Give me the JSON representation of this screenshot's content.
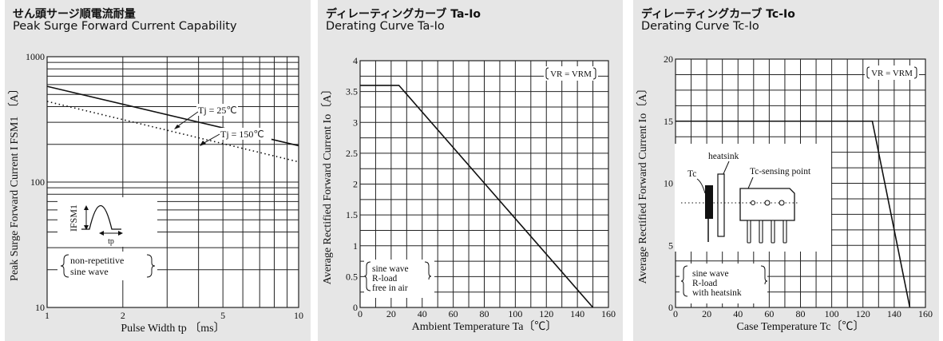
{
  "colors": {
    "background": "#e6e6e6",
    "grid": "#222222",
    "curve": "#111111",
    "box": "#ffffff"
  },
  "panels": [
    {
      "title_jp": "せん頭サージ順電流耐量",
      "title_en": "Peak Surge Forward Current Capability"
    },
    {
      "title_jp": "ディレーティングカーブ Ta-Io",
      "title_en": "Derating Curve Ta-Io"
    },
    {
      "title_jp": "ディレーティングカーブ Tc-Io",
      "title_en": "Derating  Curve  Tc-Io"
    }
  ],
  "chart_data": [
    {
      "type": "line",
      "xscale": "log",
      "yscale": "log",
      "xlim": [
        1,
        10
      ],
      "ylim": [
        10,
        1000
      ],
      "xlabel": "Pulse Width tp 〔ms〕",
      "ylabel": "Peak Surge Forward Current I FSM1 〔A〕",
      "x_ticks": [
        {
          "v": 1,
          "label": "1"
        },
        {
          "v": 2,
          "label": "2"
        },
        {
          "v": 5,
          "label": "5"
        },
        {
          "v": 10,
          "label": "10"
        }
      ],
      "y_ticks": [
        {
          "v": 10,
          "label": "10"
        },
        {
          "v": 100,
          "label": "100"
        },
        {
          "v": 1000,
          "label": "1000"
        }
      ],
      "grid": true,
      "series": [
        {
          "name": "Tj = 25℃",
          "style": "solid",
          "x": [
            1,
            10
          ],
          "y": [
            580,
            195
          ]
        },
        {
          "name": "Tj = 150℃",
          "style": "dotted",
          "x": [
            1,
            10
          ],
          "y": [
            440,
            145
          ]
        }
      ],
      "annotations": {
        "ifsm_label": "IFSM1",
        "tp_label": "tp",
        "note_lines": [
          "non-repetitive",
          "sine wave"
        ]
      }
    },
    {
      "type": "line",
      "xlim": [
        0,
        160
      ],
      "ylim": [
        0,
        4
      ],
      "xlabel": "Ambient Temperature Ta〔℃〕",
      "ylabel": "Average Rectified Forward Current Io〔A〕",
      "x_ticks": [
        0,
        20,
        40,
        60,
        80,
        100,
        120,
        140,
        160
      ],
      "y_ticks": [
        {
          "v": 0,
          "label": "0"
        },
        {
          "v": 0.5,
          "label": "0.5"
        },
        {
          "v": 1,
          "label": "1"
        },
        {
          "v": 1.5,
          "label": "1.5"
        },
        {
          "v": 2,
          "label": "2"
        },
        {
          "v": 2.5,
          "label": "2.5"
        },
        {
          "v": 3,
          "label": "3"
        },
        {
          "v": 3.5,
          "label": "3.5"
        },
        {
          "v": 4,
          "label": "4"
        }
      ],
      "grid": true,
      "series": [
        {
          "style": "solid",
          "x": [
            0,
            25,
            150
          ],
          "y": [
            3.6,
            3.6,
            0
          ]
        }
      ],
      "annotations": {
        "vr_label": "VR = VRM",
        "note_lines": [
          "sine wave",
          "R-load",
          "free in air"
        ]
      }
    },
    {
      "type": "line",
      "xlim": [
        0,
        160
      ],
      "ylim": [
        0,
        20
      ],
      "xlabel": "Case Temperature Tc〔℃〕",
      "ylabel": "Average Rectified Forward Current Io〔A〕",
      "x_ticks": [
        0,
        20,
        40,
        60,
        80,
        100,
        120,
        140,
        160
      ],
      "y_ticks": [
        {
          "v": 0,
          "label": "0"
        },
        {
          "v": 5,
          "label": "5"
        },
        {
          "v": 10,
          "label": "10"
        },
        {
          "v": 15,
          "label": "15"
        },
        {
          "v": 20,
          "label": "20"
        }
      ],
      "grid": true,
      "series": [
        {
          "style": "solid",
          "x": [
            0,
            126,
            150
          ],
          "y": [
            15,
            15,
            0
          ]
        }
      ],
      "annotations": {
        "vr_label": "VR = VRM",
        "heatsink_label": "heatsink",
        "tc_label": "Tc",
        "tc_point_label": "Tc-sensing point",
        "note_lines": [
          "sine wave",
          "R-load",
          "with heatsink"
        ]
      }
    }
  ]
}
